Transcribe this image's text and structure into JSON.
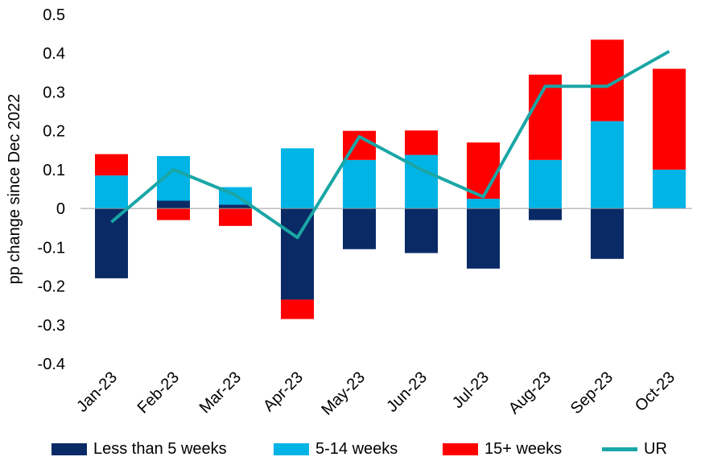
{
  "chart_data": {
    "type": "bar",
    "stacked": true,
    "categories": [
      "Jan-23",
      "Feb-23",
      "Mar-23",
      "Apr-23",
      "May-23",
      "Jun-23",
      "Jul-23",
      "Aug-23",
      "Sep-23",
      "Oct-23"
    ],
    "series": [
      {
        "name": "Less than 5 weeks",
        "color": "#0a2a66",
        "values": [
          -0.18,
          0.02,
          0.01,
          -0.235,
          -0.105,
          -0.115,
          -0.155,
          -0.03,
          -0.13,
          0.0
        ]
      },
      {
        "name": "5-14 weeks",
        "color": "#00b4e6",
        "values": [
          0.085,
          0.115,
          0.045,
          0.155,
          0.125,
          0.138,
          0.025,
          0.125,
          0.225,
          0.1
        ]
      },
      {
        "name": "15+ weeks",
        "color": "#ff0000",
        "values": [
          0.055,
          -0.03,
          -0.045,
          -0.05,
          0.075,
          0.063,
          0.145,
          0.22,
          0.21,
          0.26
        ]
      }
    ],
    "line": {
      "name": "UR",
      "color": "#1aa6a6",
      "values": [
        -0.035,
        0.1,
        0.035,
        -0.075,
        0.185,
        0.1,
        0.03,
        0.315,
        0.315,
        0.405
      ]
    },
    "ylabel": "pp change since Dec 2022",
    "ylim": [
      -0.4,
      0.5
    ],
    "yticks": [
      0.5,
      0.4,
      0.3,
      0.2,
      0.1,
      0,
      -0.1,
      -0.2,
      -0.3,
      -0.4
    ],
    "ytick_labels": [
      "0.5",
      "0.4",
      "0.3",
      "0.2",
      "0.1",
      "0",
      "-0.1",
      "-0.2",
      "-0.3",
      "-0.4"
    ],
    "legend_position": "bottom"
  }
}
